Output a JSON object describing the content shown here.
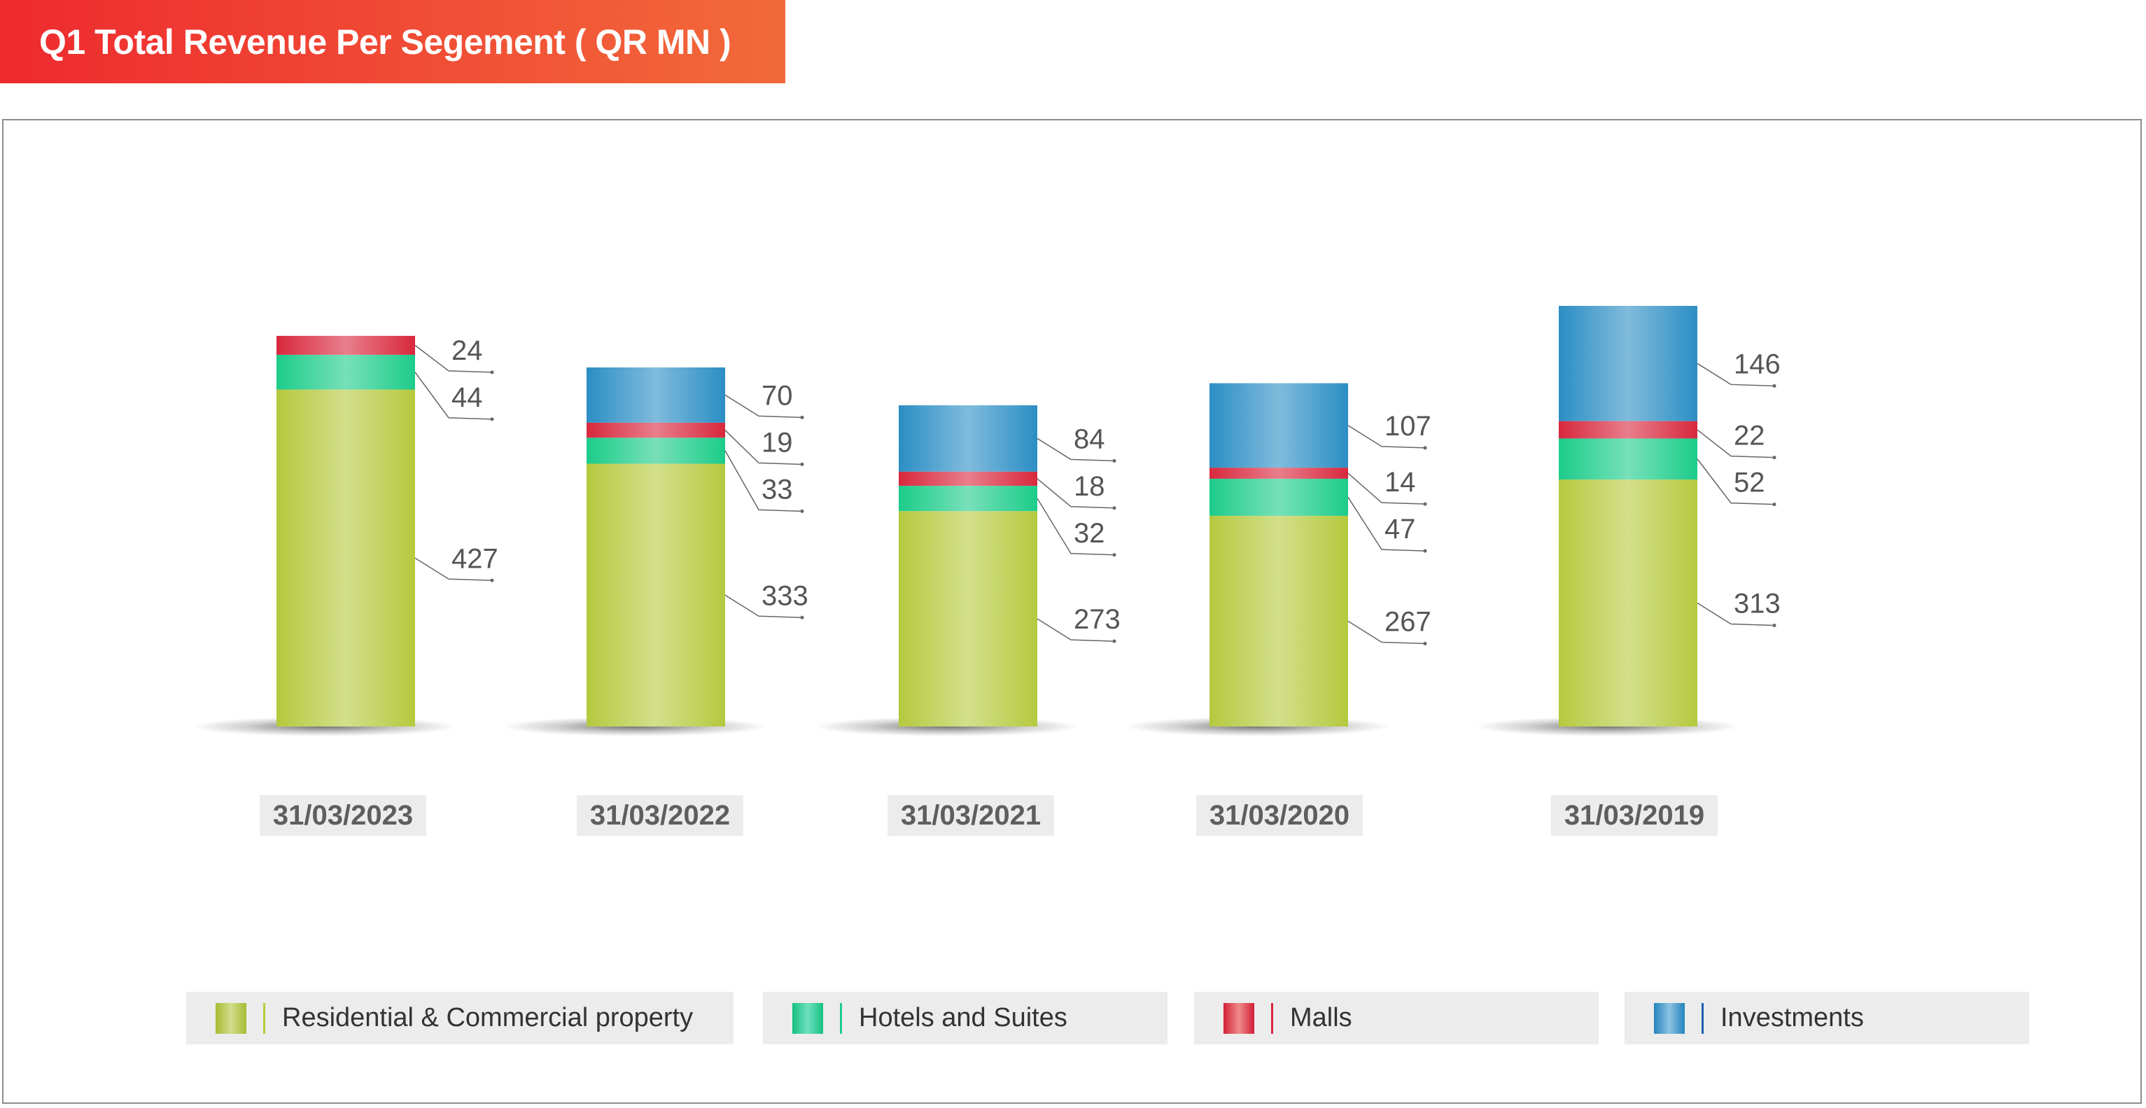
{
  "title": "Q1 Total Revenue Per Segement ( QR MN )",
  "chart_data": {
    "type": "bar",
    "stacked": true,
    "title": "Q1 Total Revenue Per Segement ( QR MN )",
    "categories": [
      "31/03/2023",
      "31/03/2022",
      "31/03/2021",
      "31/03/2020",
      "31/03/2019"
    ],
    "series": [
      {
        "name": "Residential & Commercial property",
        "color": "#b5c93e",
        "values": [
          427,
          333,
          273,
          267,
          313
        ]
      },
      {
        "name": "Hotels and Suites",
        "color": "#1ccc8a",
        "values": [
          44,
          33,
          32,
          47,
          52
        ]
      },
      {
        "name": "Malls",
        "color": "#d8283d",
        "values": [
          24,
          19,
          18,
          14,
          22
        ]
      },
      {
        "name": "Investments",
        "color": "#2b8ec4",
        "values": [
          null,
          70,
          84,
          107,
          146
        ]
      }
    ],
    "legend_position": "bottom",
    "grid": false
  }
}
